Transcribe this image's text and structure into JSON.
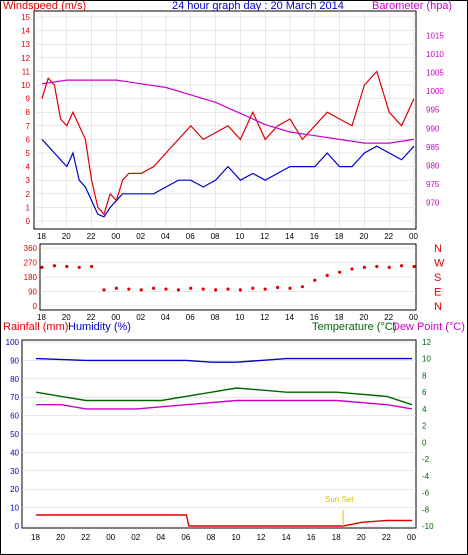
{
  "title": "24 hour graph day : 20 March 2014",
  "colors": {
    "wind": "#e00000",
    "gust": "#e00000",
    "wind_avg": "#0000cc",
    "barometer": "#cc00cc",
    "direction": "#e00000",
    "humidity": "#0000cc",
    "temperature": "#006600",
    "dewpoint": "#cc00cc",
    "rainfall": "#e00000",
    "sunset": "#e0c000",
    "grid": "#d0d0d0",
    "axis": "#000000"
  },
  "chart_data": [
    {
      "type": "line",
      "id": "wind",
      "left_label": "Windspeed (m/s)",
      "right_label": "Barometer (hpa)",
      "x_ticks": [
        "18",
        "20",
        "22",
        "00",
        "02",
        "04",
        "06",
        "08",
        "10",
        "12",
        "14",
        "16",
        "18",
        "20",
        "22",
        "00"
      ],
      "y_left": {
        "min": 0,
        "max": 15,
        "ticks": [
          0,
          1,
          2,
          3,
          4,
          5,
          6,
          7,
          8,
          9,
          10,
          11,
          12,
          13,
          14,
          15
        ]
      },
      "y_right": {
        "min": 965,
        "max": 1020,
        "ticks": [
          970,
          975,
          980,
          985,
          990,
          995,
          1000,
          1005,
          1010,
          1015
        ]
      },
      "series": [
        {
          "role": "gust",
          "hours": [
            0,
            0.5,
            1,
            1.5,
            2,
            2.5,
            3,
            3.5,
            4,
            4.5,
            5,
            5.5,
            6,
            6.5,
            7,
            7.5,
            8,
            9,
            10,
            11,
            12,
            13,
            14,
            15,
            16,
            17,
            18,
            19,
            20,
            21,
            22,
            23,
            24,
            25,
            26,
            27,
            28,
            29,
            30
          ],
          "values": [
            9,
            10.5,
            10,
            7.5,
            7,
            8,
            7,
            6,
            3,
            1,
            0.5,
            2,
            1.5,
            3,
            3.5,
            3.5,
            3.5,
            4,
            5,
            6,
            7,
            6,
            6.5,
            7,
            6,
            8,
            6,
            7,
            7.5,
            6,
            7,
            8,
            7.5,
            7,
            10,
            11,
            8,
            7,
            9
          ]
        },
        {
          "role": "wind_avg",
          "hours": [
            0,
            0.5,
            1,
            1.5,
            2,
            2.5,
            3,
            3.5,
            4,
            4.5,
            5,
            5.5,
            6,
            6.5,
            7,
            7.5,
            8,
            9,
            10,
            11,
            12,
            13,
            14,
            15,
            16,
            17,
            18,
            19,
            20,
            21,
            22,
            23,
            24,
            25,
            26,
            27,
            28,
            29,
            30
          ],
          "values": [
            6,
            5.5,
            5,
            4.5,
            4,
            5,
            3,
            2.5,
            1.5,
            0.5,
            0.3,
            1,
            1.5,
            2,
            2,
            2,
            2,
            2,
            2.5,
            3,
            3,
            2.5,
            3,
            4,
            3,
            3.5,
            3,
            3.5,
            4,
            4,
            4,
            5,
            4,
            4,
            5,
            5.5,
            5,
            4.5,
            5.5
          ]
        },
        {
          "role": "barometer",
          "hours": [
            0,
            2,
            4,
            6,
            8,
            10,
            12,
            14,
            16,
            18,
            20,
            22,
            24,
            26,
            28,
            30
          ],
          "values": [
            1002,
            1003,
            1003,
            1003,
            1002,
            1001,
            999,
            997,
            994,
            991,
            989,
            988,
            987,
            986,
            986,
            987
          ]
        }
      ]
    },
    {
      "type": "scatter",
      "id": "direction",
      "right_labels": [
        "N",
        "W",
        "S",
        "E",
        "N"
      ],
      "y": {
        "min": 0,
        "max": 360,
        "ticks": [
          0,
          90,
          180,
          270,
          360
        ]
      },
      "x_ticks": [
        "18",
        "20",
        "22",
        "00",
        "02",
        "04",
        "06",
        "08",
        "10",
        "12",
        "14",
        "16",
        "18",
        "20",
        "22",
        "00"
      ],
      "hours": [
        0,
        1,
        2,
        3,
        4,
        5,
        6,
        7,
        8,
        9,
        10,
        11,
        12,
        13,
        14,
        15,
        16,
        17,
        18,
        19,
        20,
        21,
        22,
        23,
        24,
        25,
        26,
        27,
        28,
        29,
        30
      ],
      "values": [
        240,
        250,
        245,
        240,
        245,
        100,
        110,
        105,
        100,
        110,
        105,
        100,
        110,
        105,
        100,
        105,
        100,
        110,
        105,
        115,
        110,
        120,
        160,
        190,
        210,
        230,
        240,
        245,
        240,
        250,
        245
      ]
    },
    {
      "type": "line",
      "id": "temphum",
      "labels": {
        "rainfall": "Rainfall (mm)",
        "humidity": "Humidity (%)",
        "temperature": "Temperature (°C)",
        "dewpoint": "Dew Point (°C)"
      },
      "annotation": "Sun Set",
      "x_ticks": [
        "18",
        "20",
        "22",
        "00",
        "02",
        "04",
        "06",
        "08",
        "10",
        "12",
        "14",
        "16",
        "18",
        "20",
        "22",
        "00"
      ],
      "y_left": {
        "min": 0,
        "max": 100,
        "ticks": [
          0,
          10,
          20,
          30,
          40,
          50,
          60,
          70,
          80,
          90,
          100
        ]
      },
      "y_right": {
        "min": -10,
        "max": 12,
        "ticks": [
          -10,
          -8,
          -6,
          -4,
          -2,
          0,
          2,
          4,
          6,
          8,
          10,
          12
        ]
      },
      "series": [
        {
          "role": "humidity",
          "hours": [
            0,
            4,
            8,
            12,
            14,
            16,
            18,
            20,
            24,
            26,
            30
          ],
          "values": [
            91,
            90,
            90,
            90,
            89,
            89,
            90,
            91,
            91,
            91,
            91
          ]
        },
        {
          "role": "temperature",
          "hours": [
            0,
            2,
            4,
            8,
            10,
            14,
            16,
            20,
            24,
            28,
            30
          ],
          "values": [
            6,
            5.5,
            5,
            5,
            5,
            6,
            6.5,
            6,
            6,
            5.5,
            4.5
          ]
        },
        {
          "role": "dewpoint",
          "hours": [
            0,
            2,
            4,
            8,
            12,
            16,
            20,
            24,
            28,
            30
          ],
          "values": [
            4.5,
            4.5,
            4,
            4,
            4.5,
            5,
            5,
            5,
            4.5,
            4
          ]
        },
        {
          "role": "rainfall",
          "hours": [
            0,
            6,
            12,
            12.2,
            24.5,
            26,
            28,
            30
          ],
          "values": [
            6,
            6,
            6,
            0,
            0,
            2,
            3,
            3
          ]
        }
      ]
    }
  ]
}
